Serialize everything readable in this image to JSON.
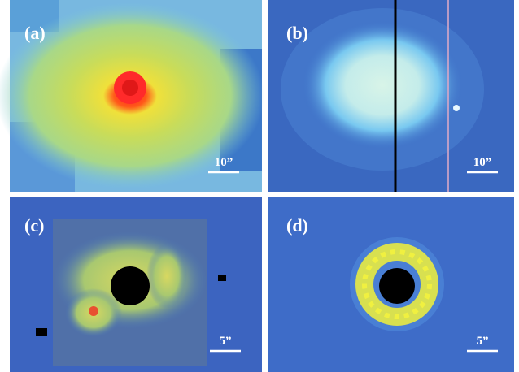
{
  "panels": [
    {
      "label": "(a)",
      "scale_label": "10”"
    },
    {
      "label": "(b)",
      "scale_label": "10”"
    },
    {
      "label": "(c)",
      "scale_label": "5”"
    },
    {
      "label": "(d)",
      "scale_label": "5”"
    }
  ]
}
